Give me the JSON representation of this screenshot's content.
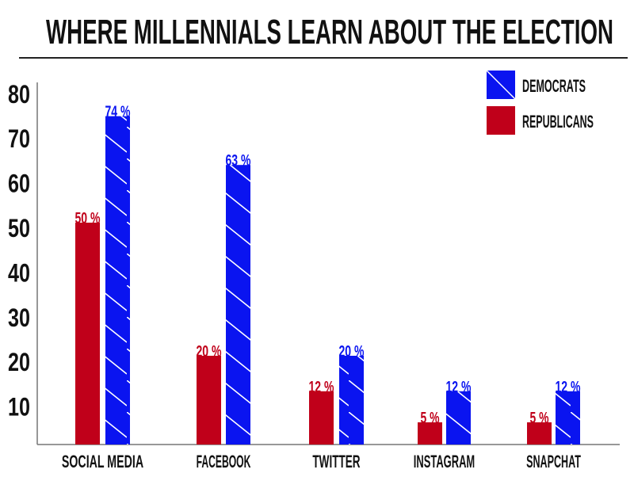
{
  "chart_data": {
    "type": "bar",
    "title": "WHERE MILLENNIALS LEARN ABOUT THE ELECTION",
    "xlabel": "",
    "ylabel": "",
    "ylim": [
      0,
      80
    ],
    "yticks": [
      10,
      20,
      30,
      40,
      50,
      60,
      70,
      80
    ],
    "grid": false,
    "legend_position": "top-right",
    "categories": [
      "SOCIAL MEDIA",
      "FACEBOOK",
      "TWITTER",
      "INSTAGRAM",
      "SNAPCHAT"
    ],
    "series": [
      {
        "name": "REPUBLICANS",
        "color": "#c0001a",
        "values": [
          50,
          20,
          12,
          5,
          5
        ],
        "labels": [
          "50 %",
          "20 %",
          "12 %",
          "5 %",
          "5 %"
        ]
      },
      {
        "name": "DEMOCRATS",
        "color": "#0a14f0",
        "pattern": "hatch",
        "values": [
          74,
          63,
          20,
          12,
          12
        ],
        "labels": [
          "74 %",
          "63 %",
          "20 %",
          "12 %",
          "12 %"
        ]
      }
    ],
    "legend": [
      "DEMOCRATS",
      "REPUBLICANS"
    ]
  }
}
